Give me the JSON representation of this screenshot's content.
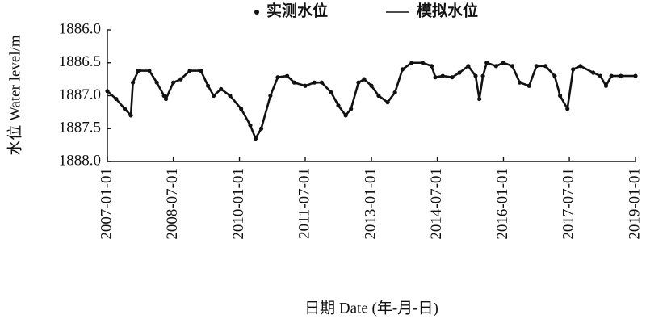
{
  "chart_data": {
    "type": "line",
    "x_label": "日期 Date (年-月-日)",
    "y_label": "水位 Water level/m",
    "x": [
      "2007-01-01",
      "2007-03-15",
      "2007-05-25",
      "2007-07-15",
      "2007-08-01",
      "2007-09-15",
      "2007-12-15",
      "2008-02-15",
      "2008-04-15",
      "2008-05-01",
      "2008-07-01",
      "2008-09-01",
      "2008-11-15",
      "2009-02-15",
      "2009-04-15",
      "2009-06-01",
      "2009-08-01",
      "2009-10-15",
      "2010-01-15",
      "2010-04-01",
      "2010-05-15",
      "2010-07-01",
      "2010-09-15",
      "2010-11-15",
      "2011-02-01",
      "2011-04-01",
      "2011-07-01",
      "2011-09-15",
      "2011-11-15",
      "2012-02-01",
      "2012-04-01",
      "2012-06-01",
      "2012-07-15",
      "2012-09-15",
      "2012-11-01",
      "2013-01-01",
      "2013-03-01",
      "2013-05-15",
      "2013-07-15",
      "2013-09-15",
      "2013-12-01",
      "2014-03-01",
      "2014-05-15",
      "2014-06-15",
      "2014-08-15",
      "2014-11-01",
      "2015-01-01",
      "2015-03-15",
      "2015-05-15",
      "2015-06-15",
      "2015-07-15",
      "2015-08-15",
      "2015-11-01",
      "2016-01-01",
      "2016-03-15",
      "2016-05-15",
      "2016-08-01",
      "2016-10-01",
      "2016-12-15",
      "2017-03-01",
      "2017-04-15",
      "2017-06-15",
      "2017-08-01",
      "2017-10-01",
      "2018-01-15",
      "2018-03-15",
      "2018-05-01",
      "2018-06-15",
      "2018-09-01",
      "2019-01-01"
    ],
    "series": [
      {
        "name": "实测水位",
        "color": "#111111",
        "style": "dots",
        "values": [
          1886.93,
          1887.05,
          1887.2,
          1887.3,
          1886.8,
          1886.62,
          1886.62,
          1886.8,
          1887.0,
          1887.05,
          1886.8,
          1886.75,
          1886.62,
          1886.62,
          1886.85,
          1887.0,
          1886.9,
          1887.0,
          1887.2,
          1887.45,
          1887.65,
          1887.5,
          1887.0,
          1886.72,
          1886.7,
          1886.8,
          1886.85,
          1886.8,
          1886.8,
          1886.95,
          1887.15,
          1887.3,
          1887.2,
          1886.8,
          1886.75,
          1886.85,
          1887.0,
          1887.1,
          1886.95,
          1886.6,
          1886.5,
          1886.5,
          1886.55,
          1886.72,
          1886.7,
          1886.72,
          1886.65,
          1886.55,
          1886.7,
          1887.05,
          1886.7,
          1886.5,
          1886.55,
          1886.5,
          1886.55,
          1886.8,
          1886.85,
          1886.55,
          1886.55,
          1886.7,
          1887.0,
          1887.2,
          1886.6,
          1886.55,
          1886.65,
          1886.7,
          1886.85,
          1886.7,
          1886.7,
          1886.7
        ]
      },
      {
        "name": "模拟水位",
        "color": "#111111",
        "style": "line",
        "values": [
          1886.93,
          1887.05,
          1887.2,
          1887.3,
          1886.8,
          1886.62,
          1886.62,
          1886.8,
          1887.0,
          1887.05,
          1886.8,
          1886.75,
          1886.62,
          1886.62,
          1886.85,
          1887.0,
          1886.9,
          1887.0,
          1887.2,
          1887.45,
          1887.65,
          1887.5,
          1887.0,
          1886.72,
          1886.7,
          1886.8,
          1886.85,
          1886.8,
          1886.8,
          1886.95,
          1887.15,
          1887.3,
          1887.2,
          1886.8,
          1886.75,
          1886.85,
          1887.0,
          1887.1,
          1886.95,
          1886.6,
          1886.5,
          1886.5,
          1886.55,
          1886.72,
          1886.7,
          1886.72,
          1886.65,
          1886.55,
          1886.7,
          1887.05,
          1886.7,
          1886.5,
          1886.55,
          1886.5,
          1886.55,
          1886.8,
          1886.85,
          1886.55,
          1886.55,
          1886.7,
          1887.0,
          1887.2,
          1886.6,
          1886.55,
          1886.65,
          1886.7,
          1886.85,
          1886.7,
          1886.7,
          1886.7
        ]
      }
    ],
    "xlim": [
      "2007-01-01",
      "2019-01-01"
    ],
    "xticks": [
      "2007-01-01",
      "2008-07-01",
      "2010-01-01",
      "2011-07-01",
      "2013-01-01",
      "2014-07-01",
      "2016-01-01",
      "2017-07-01",
      "2019-01-01"
    ],
    "ylim": [
      1886,
      1888
    ],
    "y_inverted": true,
    "yticks": [
      {
        "value": 1886,
        "label": "1886.0"
      },
      1886.5,
      {
        "value": 1887,
        "label": "1887.0"
      },
      1887.5,
      {
        "value": 1888,
        "label": "1888.0"
      }
    ],
    "legend": "top",
    "grid": false
  }
}
